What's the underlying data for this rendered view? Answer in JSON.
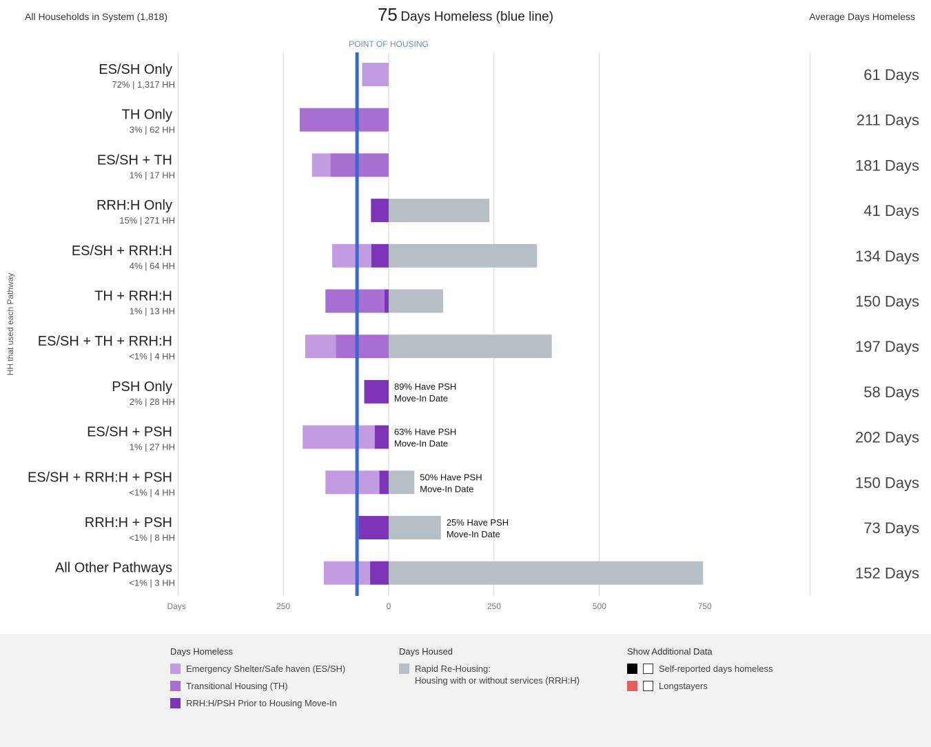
{
  "header": {
    "left": "All Households in System (1,818)",
    "center_number": "75",
    "center_text": "Days Homeless (blue line)",
    "right": "Average Days Homeless"
  },
  "y_axis_title": "HH that used each Pathway",
  "colors": {
    "es_sh": "#c29be0",
    "th": "#a86fd2",
    "rrh_psh_prior": "#7d34b8",
    "housed": "#b5bfc5",
    "blue_line": "#3a67c9",
    "self_reported": "#000000",
    "longstayers": "#e85c5c"
  },
  "chart_data": {
    "type": "bar",
    "orientation": "horizontal-diverging",
    "reference_line": {
      "label": "POINT OF HOUSING",
      "value": -75
    },
    "x_ticks": [
      {
        "label": "Days"
      },
      {
        "label": "250",
        "value": -250
      },
      {
        "label": "0",
        "value": 0
      },
      {
        "label": "250",
        "value": 250
      },
      {
        "label": "500",
        "value": 500
      },
      {
        "label": "750",
        "value": 750
      }
    ],
    "xlim": [
      -500,
      1000
    ],
    "grid": true,
    "categories": [
      {
        "label": "ES/SH Only",
        "sub": "72% | 1,317 HH",
        "avg": "61 Days",
        "segments": [
          {
            "series": "es_sh",
            "from": -63,
            "to": 0
          }
        ]
      },
      {
        "label": "TH Only",
        "sub": "3% | 62 HH",
        "avg": "211 Days",
        "segments": [
          {
            "series": "th",
            "from": -211,
            "to": 0
          }
        ]
      },
      {
        "label": "ES/SH + TH",
        "sub": "1% | 17 HH",
        "avg": "181 Days",
        "segments": [
          {
            "series": "es_sh",
            "from": -182,
            "to": -138
          },
          {
            "series": "th",
            "from": -138,
            "to": 0
          }
        ]
      },
      {
        "label": "RRH:H Only",
        "sub": "15% | 271 HH",
        "avg": "41 Days",
        "segments": [
          {
            "series": "rrh_psh_prior",
            "from": -42,
            "to": 0
          },
          {
            "series": "housed",
            "from": 0,
            "to": 239
          }
        ]
      },
      {
        "label": "ES/SH + RRH:H",
        "sub": "4% | 64 HH",
        "avg": "134 Days",
        "segments": [
          {
            "series": "es_sh",
            "from": -134,
            "to": -41
          },
          {
            "series": "rrh_psh_prior",
            "from": -41,
            "to": 0
          },
          {
            "series": "housed",
            "from": 0,
            "to": 352
          }
        ]
      },
      {
        "label": "TH + RRH:H",
        "sub": "1% | 13 HH",
        "avg": "150 Days",
        "segments": [
          {
            "series": "th",
            "from": -150,
            "to": -10
          },
          {
            "series": "rrh_psh_prior",
            "from": -10,
            "to": 0
          },
          {
            "series": "housed",
            "from": 0,
            "to": 129
          }
        ]
      },
      {
        "label": "ES/SH + TH + RRH:H",
        "sub": "<1% | 4 HH",
        "avg": "197 Days",
        "segments": [
          {
            "series": "es_sh",
            "from": -198,
            "to": -125
          },
          {
            "series": "th",
            "from": -125,
            "to": 0
          },
          {
            "series": "housed",
            "from": 0,
            "to": 387
          }
        ]
      },
      {
        "label": "PSH Only",
        "sub": "2% | 28 HH",
        "avg": "58 Days",
        "segments": [
          {
            "series": "rrh_psh_prior",
            "from": -58,
            "to": 0
          }
        ],
        "annotation": [
          "89% Have PSH",
          "Move-In Date"
        ]
      },
      {
        "label": "ES/SH + PSH",
        "sub": "1% | 27 HH",
        "avg": "202 Days",
        "segments": [
          {
            "series": "es_sh",
            "from": -204,
            "to": -33
          },
          {
            "series": "rrh_psh_prior",
            "from": -33,
            "to": 0
          }
        ],
        "annotation": [
          "63% Have PSH",
          "Move-In Date"
        ]
      },
      {
        "label": "ES/SH + RRH:H + PSH",
        "sub": "<1% | 4 HH",
        "avg": "150 Days",
        "segments": [
          {
            "series": "es_sh",
            "from": -150,
            "to": -22
          },
          {
            "series": "rrh_psh_prior",
            "from": -22,
            "to": 0
          },
          {
            "series": "housed",
            "from": 0,
            "to": 61
          }
        ],
        "annotation": [
          "50% Have PSH",
          "Move-In Date"
        ]
      },
      {
        "label": "RRH:H + PSH",
        "sub": "<1% | 8 HH",
        "avg": "73 Days",
        "segments": [
          {
            "series": "rrh_psh_prior",
            "from": -71,
            "to": 0
          },
          {
            "series": "housed",
            "from": 0,
            "to": 124
          }
        ],
        "annotation": [
          "25% Have PSH",
          "Move-In Date"
        ]
      },
      {
        "label": "All Other Pathways",
        "sub": "<1% | 3 HH",
        "avg": "152 Days",
        "segments": [
          {
            "series": "es_sh",
            "from": -154,
            "to": -44
          },
          {
            "series": "rrh_psh_prior",
            "from": -44,
            "to": 0
          },
          {
            "series": "housed",
            "from": 0,
            "to": 746
          }
        ]
      }
    ]
  },
  "legend": {
    "days_homeless": {
      "title": "Days Homeless",
      "items": [
        {
          "label": "Emergency Shelter/Safe haven (ES/SH)"
        },
        {
          "label": "Transitional Housing (TH)"
        },
        {
          "label": "RRH:H/PSH Prior to Housing Move-In"
        }
      ]
    },
    "days_housed": {
      "title": "Days Housed",
      "items": [
        {
          "line1": "Rapid Re-Housing:",
          "line2": "Housing with or without services (RRH:H)"
        }
      ]
    },
    "additional": {
      "title": "Show Additional Data",
      "items": [
        {
          "label": "Self-reported days homeless"
        },
        {
          "label": "Longstayers"
        }
      ]
    }
  }
}
